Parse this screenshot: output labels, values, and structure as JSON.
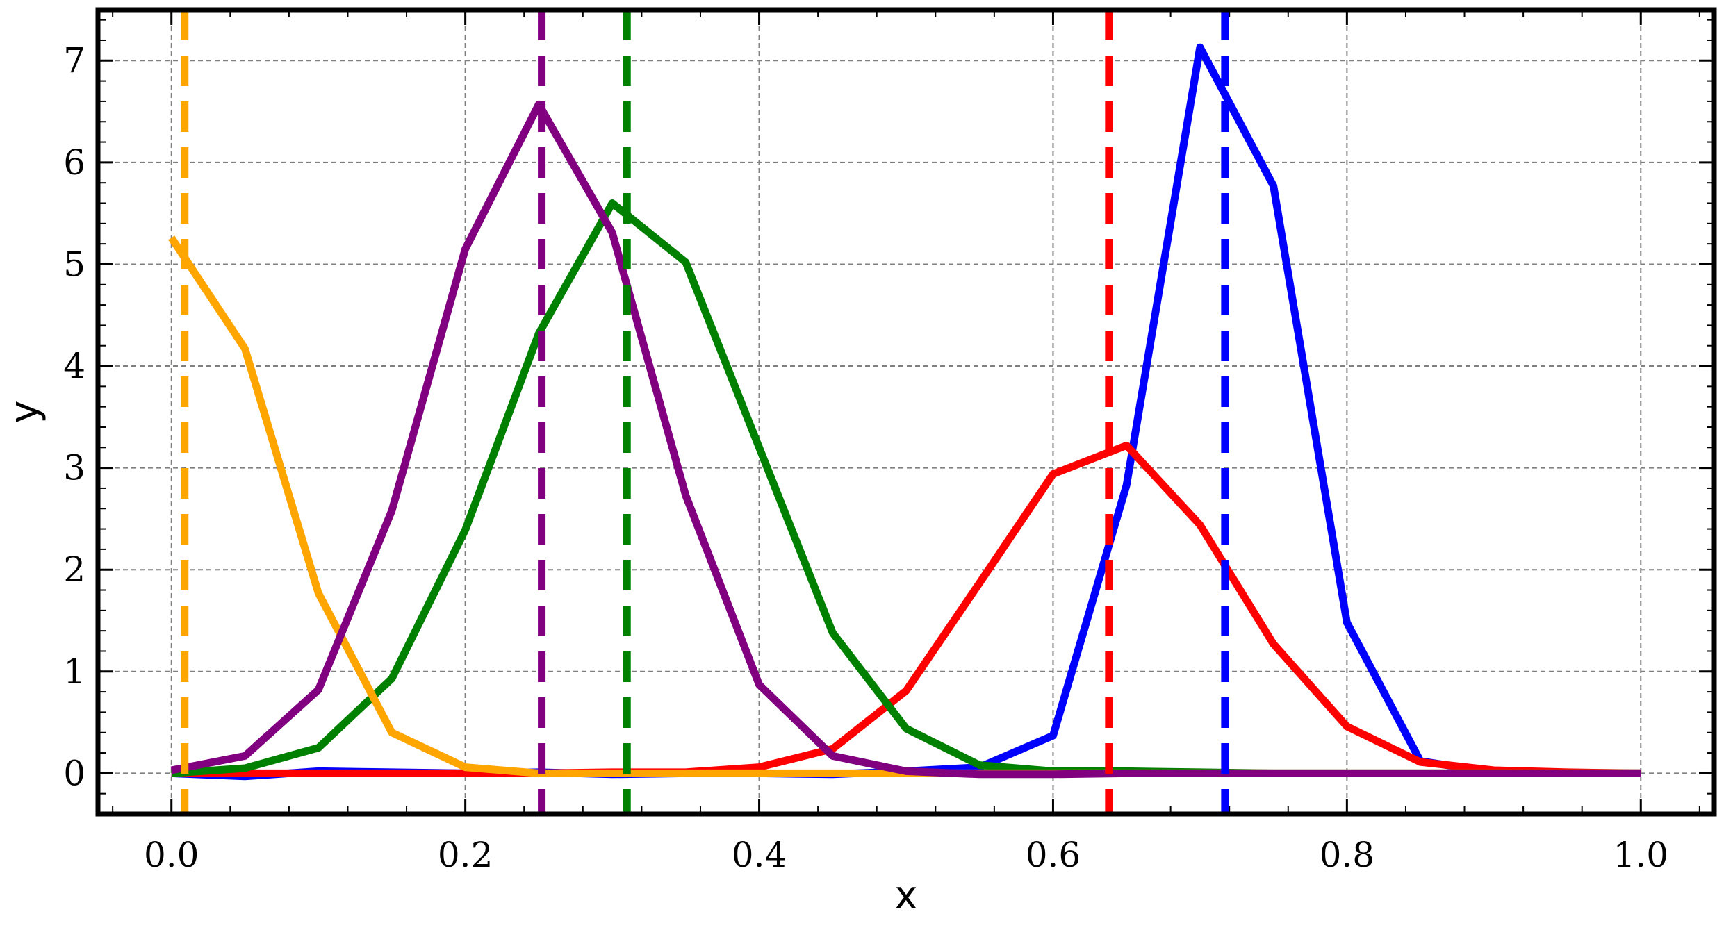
{
  "chart_data": {
    "type": "line",
    "title": "",
    "xlabel": "x",
    "ylabel": "y",
    "xlim": [
      -0.05,
      1.05
    ],
    "ylim": [
      -0.4,
      7.5
    ],
    "grid": true,
    "grid_style": "dashed",
    "x_ticks": [
      0.0,
      0.2,
      0.4,
      0.6,
      0.8,
      1.0
    ],
    "x_tick_labels": [
      "0.0",
      "0.2",
      "0.4",
      "0.6",
      "0.8",
      "1.0"
    ],
    "y_ticks": [
      0,
      1,
      2,
      3,
      4,
      5,
      6,
      7
    ],
    "y_tick_labels": [
      "0",
      "1",
      "2",
      "3",
      "4",
      "5",
      "6",
      "7"
    ],
    "x": [
      0.0,
      0.05,
      0.1,
      0.15,
      0.2,
      0.25,
      0.3,
      0.35,
      0.4,
      0.45,
      0.5,
      0.55,
      0.6,
      0.65,
      0.7,
      0.75,
      0.8,
      0.85,
      0.9,
      0.95,
      1.0
    ],
    "series": [
      {
        "color": "#0000ff",
        "values": [
          0.0,
          -0.03,
          0.02,
          0.01,
          0.0,
          0.01,
          -0.01,
          0.0,
          0.0,
          -0.01,
          0.02,
          0.06,
          0.37,
          2.83,
          7.13,
          5.77,
          1.48,
          0.12,
          0.01,
          0.0,
          0.0
        ],
        "vline": 0.717
      },
      {
        "color": "#ff0000",
        "values": [
          0.0,
          0.0,
          0.0,
          0.0,
          0.0,
          0.0,
          0.01,
          0.01,
          0.06,
          0.24,
          0.81,
          1.87,
          2.94,
          3.22,
          2.44,
          1.27,
          0.46,
          0.11,
          0.03,
          0.01,
          0.0
        ],
        "vline": 0.638
      },
      {
        "color": "#008000",
        "values": [
          0.0,
          0.05,
          0.25,
          0.93,
          2.39,
          4.32,
          5.6,
          5.02,
          3.2,
          1.38,
          0.44,
          0.08,
          0.02,
          0.02,
          0.01,
          0.0,
          0.0,
          0.0,
          0.0,
          0.0,
          0.0
        ],
        "vline": 0.31
      },
      {
        "color": "#ffa500",
        "values": [
          5.26,
          4.17,
          1.77,
          0.4,
          0.06,
          0.0,
          0.0,
          0.0,
          0.0,
          0.0,
          0.0,
          0.0,
          0.0,
          0.0,
          0.0,
          0.0,
          0.0,
          0.0,
          0.0,
          0.0,
          0.0
        ],
        "vline": 0.009
      },
      {
        "color": "#800080",
        "values": [
          0.03,
          0.17,
          0.82,
          2.58,
          5.15,
          6.57,
          5.31,
          2.73,
          0.87,
          0.17,
          0.02,
          -0.01,
          -0.01,
          0.0,
          0.0,
          0.0,
          0.0,
          0.0,
          0.0,
          0.0,
          0.0
        ],
        "vline": 0.252
      }
    ]
  }
}
